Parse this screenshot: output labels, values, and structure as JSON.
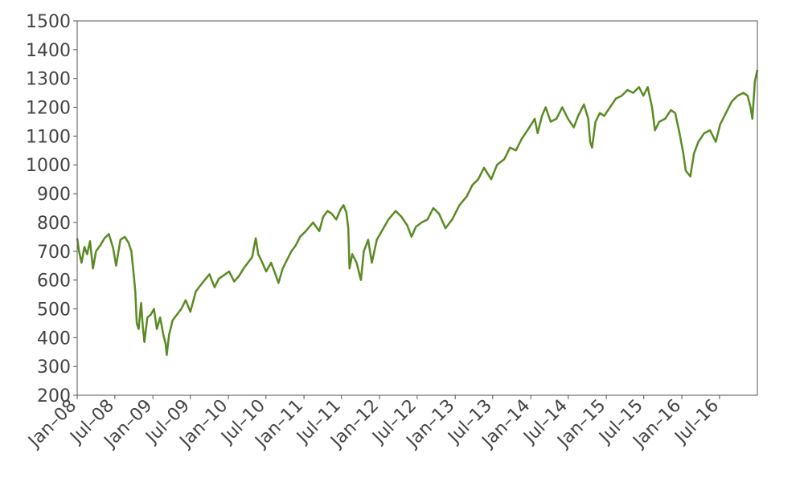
{
  "chart_data": {
    "type": "line",
    "title": "",
    "xlabel": "",
    "ylabel": "",
    "ylim": [
      200,
      1500
    ],
    "xlim": [
      "2008-01-01",
      "2016-12-31"
    ],
    "grid": false,
    "y_ticks": [
      200,
      300,
      400,
      500,
      600,
      700,
      800,
      900,
      1000,
      1100,
      1200,
      1300,
      1400,
      1500
    ],
    "x_ticks": [
      {
        "date": "2008-01-01",
        "label": "Jan–08"
      },
      {
        "date": "2008-07-01",
        "label": "Jul–08"
      },
      {
        "date": "2009-01-01",
        "label": "Jan–09"
      },
      {
        "date": "2009-07-01",
        "label": "Jul–09"
      },
      {
        "date": "2010-01-01",
        "label": "Jan–10"
      },
      {
        "date": "2010-07-01",
        "label": "Jul–10"
      },
      {
        "date": "2011-01-01",
        "label": "Jan–11"
      },
      {
        "date": "2011-07-01",
        "label": "Jul–11"
      },
      {
        "date": "2012-01-01",
        "label": "Jan–12"
      },
      {
        "date": "2012-07-01",
        "label": "Jul–12"
      },
      {
        "date": "2013-01-01",
        "label": "Jan–13"
      },
      {
        "date": "2013-07-01",
        "label": "Jul–13"
      },
      {
        "date": "2014-01-01",
        "label": "Jan–14"
      },
      {
        "date": "2014-07-01",
        "label": "Jul–14"
      },
      {
        "date": "2015-01-01",
        "label": "Jan–15"
      },
      {
        "date": "2015-07-01",
        "label": "Jul–15"
      },
      {
        "date": "2016-01-01",
        "label": "Jan–16"
      },
      {
        "date": "2016-07-01",
        "label": "Jul–16"
      }
    ],
    "series": [
      {
        "color": "#5a8a23",
        "points": [
          [
            "2008-01-01",
            745
          ],
          [
            "2008-01-10",
            700
          ],
          [
            "2008-01-22",
            660
          ],
          [
            "2008-02-05",
            715
          ],
          [
            "2008-02-18",
            690
          ],
          [
            "2008-03-03",
            735
          ],
          [
            "2008-03-17",
            640
          ],
          [
            "2008-04-01",
            700
          ],
          [
            "2008-04-21",
            720
          ],
          [
            "2008-05-12",
            745
          ],
          [
            "2008-06-02",
            760
          ],
          [
            "2008-06-23",
            710
          ],
          [
            "2008-07-07",
            650
          ],
          [
            "2008-07-28",
            740
          ],
          [
            "2008-08-18",
            750
          ],
          [
            "2008-09-05",
            730
          ],
          [
            "2008-09-19",
            700
          ],
          [
            "2008-09-30",
            620
          ],
          [
            "2008-10-08",
            560
          ],
          [
            "2008-10-15",
            450
          ],
          [
            "2008-10-24",
            430
          ],
          [
            "2008-11-05",
            520
          ],
          [
            "2008-11-13",
            440
          ],
          [
            "2008-11-21",
            385
          ],
          [
            "2008-12-05",
            470
          ],
          [
            "2008-12-22",
            480
          ],
          [
            "2009-01-06",
            500
          ],
          [
            "2009-01-20",
            430
          ],
          [
            "2009-02-05",
            470
          ],
          [
            "2009-02-20",
            410
          ],
          [
            "2009-03-03",
            380
          ],
          [
            "2009-03-09",
            340
          ],
          [
            "2009-03-20",
            410
          ],
          [
            "2009-04-06",
            460
          ],
          [
            "2009-04-27",
            480
          ],
          [
            "2009-05-18",
            500
          ],
          [
            "2009-06-08",
            530
          ],
          [
            "2009-07-01",
            490
          ],
          [
            "2009-07-27",
            560
          ],
          [
            "2009-08-17",
            580
          ],
          [
            "2009-09-08",
            600
          ],
          [
            "2009-10-01",
            620
          ],
          [
            "2009-10-26",
            575
          ],
          [
            "2009-11-16",
            605
          ],
          [
            "2009-12-07",
            615
          ],
          [
            "2010-01-04",
            630
          ],
          [
            "2010-01-29",
            595
          ],
          [
            "2010-02-22",
            615
          ],
          [
            "2010-03-15",
            640
          ],
          [
            "2010-04-05",
            660
          ],
          [
            "2010-04-26",
            680
          ],
          [
            "2010-05-06",
            720
          ],
          [
            "2010-05-13",
            745
          ],
          [
            "2010-05-25",
            690
          ],
          [
            "2010-06-14",
            660
          ],
          [
            "2010-07-02",
            630
          ],
          [
            "2010-07-26",
            660
          ],
          [
            "2010-08-16",
            620
          ],
          [
            "2010-08-31",
            590
          ],
          [
            "2010-09-20",
            640
          ],
          [
            "2010-10-11",
            670
          ],
          [
            "2010-11-01",
            700
          ],
          [
            "2010-11-22",
            720
          ],
          [
            "2010-12-13",
            750
          ],
          [
            "2011-01-10",
            770
          ],
          [
            "2011-02-14",
            800
          ],
          [
            "2011-03-16",
            770
          ],
          [
            "2011-04-04",
            820
          ],
          [
            "2011-04-25",
            840
          ],
          [
            "2011-05-16",
            830
          ],
          [
            "2011-06-06",
            810
          ],
          [
            "2011-06-27",
            845
          ],
          [
            "2011-07-11",
            860
          ],
          [
            "2011-07-25",
            835
          ],
          [
            "2011-08-03",
            780
          ],
          [
            "2011-08-09",
            640
          ],
          [
            "2011-08-22",
            690
          ],
          [
            "2011-09-12",
            660
          ],
          [
            "2011-10-03",
            600
          ],
          [
            "2011-10-17",
            700
          ],
          [
            "2011-11-07",
            740
          ],
          [
            "2011-11-25",
            660
          ],
          [
            "2011-12-19",
            740
          ],
          [
            "2012-01-16",
            775
          ],
          [
            "2012-02-13",
            810
          ],
          [
            "2012-03-19",
            840
          ],
          [
            "2012-04-16",
            820
          ],
          [
            "2012-05-14",
            790
          ],
          [
            "2012-06-04",
            750
          ],
          [
            "2012-06-25",
            785
          ],
          [
            "2012-07-23",
            800
          ],
          [
            "2012-08-20",
            810
          ],
          [
            "2012-09-17",
            850
          ],
          [
            "2012-10-15",
            830
          ],
          [
            "2012-11-15",
            780
          ],
          [
            "2012-12-17",
            810
          ],
          [
            "2013-01-21",
            860
          ],
          [
            "2013-02-25",
            890
          ],
          [
            "2013-03-25",
            930
          ],
          [
            "2013-04-22",
            950
          ],
          [
            "2013-05-20",
            990
          ],
          [
            "2013-06-24",
            950
          ],
          [
            "2013-07-22",
            1000
          ],
          [
            "2013-08-26",
            1020
          ],
          [
            "2013-09-23",
            1060
          ],
          [
            "2013-10-21",
            1050
          ],
          [
            "2013-11-18",
            1090
          ],
          [
            "2013-12-16",
            1120
          ],
          [
            "2014-01-20",
            1160
          ],
          [
            "2014-02-03",
            1110
          ],
          [
            "2014-02-24",
            1170
          ],
          [
            "2014-03-14",
            1200
          ],
          [
            "2014-04-07",
            1150
          ],
          [
            "2014-05-05",
            1160
          ],
          [
            "2014-06-02",
            1200
          ],
          [
            "2014-06-30",
            1160
          ],
          [
            "2014-07-28",
            1130
          ],
          [
            "2014-08-18",
            1170
          ],
          [
            "2014-09-15",
            1210
          ],
          [
            "2014-10-06",
            1160
          ],
          [
            "2014-10-15",
            1080
          ],
          [
            "2014-10-24",
            1060
          ],
          [
            "2014-11-10",
            1150
          ],
          [
            "2014-12-01",
            1180
          ],
          [
            "2014-12-22",
            1170
          ],
          [
            "2015-01-19",
            1200
          ],
          [
            "2015-02-16",
            1230
          ],
          [
            "2015-03-16",
            1240
          ],
          [
            "2015-04-13",
            1260
          ],
          [
            "2015-05-11",
            1250
          ],
          [
            "2015-06-08",
            1270
          ],
          [
            "2015-06-29",
            1240
          ],
          [
            "2015-07-20",
            1270
          ],
          [
            "2015-08-10",
            1200
          ],
          [
            "2015-08-24",
            1120
          ],
          [
            "2015-09-14",
            1150
          ],
          [
            "2015-10-12",
            1160
          ],
          [
            "2015-11-09",
            1190
          ],
          [
            "2015-11-30",
            1180
          ],
          [
            "2015-12-21",
            1110
          ],
          [
            "2016-01-08",
            1040
          ],
          [
            "2016-01-20",
            980
          ],
          [
            "2016-02-11",
            960
          ],
          [
            "2016-02-29",
            1040
          ],
          [
            "2016-03-21",
            1080
          ],
          [
            "2016-04-18",
            1110
          ],
          [
            "2016-05-16",
            1120
          ],
          [
            "2016-06-13",
            1080
          ],
          [
            "2016-07-04",
            1140
          ],
          [
            "2016-08-01",
            1180
          ],
          [
            "2016-08-29",
            1220
          ],
          [
            "2016-09-26",
            1240
          ],
          [
            "2016-10-24",
            1250
          ],
          [
            "2016-11-14",
            1240
          ],
          [
            "2016-11-28",
            1200
          ],
          [
            "2016-12-07",
            1160
          ],
          [
            "2016-12-19",
            1290
          ],
          [
            "2016-12-31",
            1330
          ]
        ]
      }
    ]
  }
}
